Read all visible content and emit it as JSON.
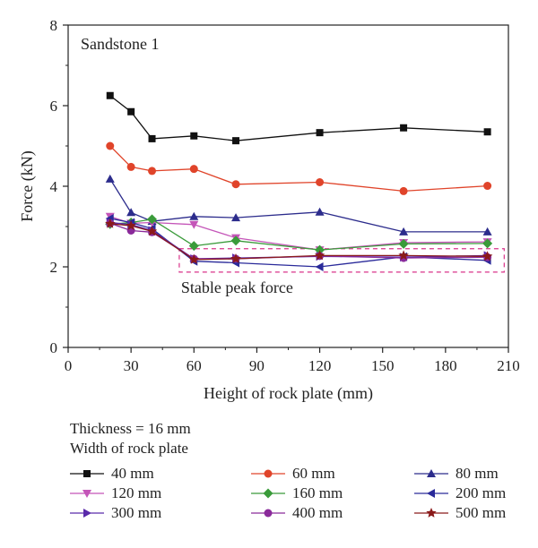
{
  "chart_data": {
    "type": "line",
    "annotation": "Sandstone 1",
    "box_label": "Stable peak force",
    "xlabel": "Height of rock plate (mm)",
    "ylabel": "Force (kN)",
    "xlim": [
      0,
      210
    ],
    "ylim": [
      0,
      8
    ],
    "x_ticks": [
      "0",
      "30",
      "60",
      "90",
      "120",
      "150",
      "180",
      "210"
    ],
    "y_ticks": [
      "0",
      "2",
      "4",
      "6",
      "8"
    ],
    "x": [
      20,
      30,
      40,
      60,
      80,
      120,
      160,
      200
    ],
    "stable_box": {
      "x_range": [
        53,
        208
      ],
      "y_range": [
        1.87,
        2.45
      ]
    },
    "series": [
      {
        "name": "40 mm",
        "color": "#111111",
        "marker": "square",
        "values": [
          6.25,
          5.85,
          5.18,
          5.25,
          5.13,
          5.33,
          5.45,
          5.35
        ]
      },
      {
        "name": "60 mm",
        "color": "#e0442a",
        "marker": "circle",
        "values": [
          5.0,
          4.48,
          4.38,
          4.43,
          4.05,
          4.1,
          3.88,
          4.01
        ]
      },
      {
        "name": "80 mm",
        "color": "#2c2c8c",
        "marker": "triangle-up",
        "values": [
          4.18,
          3.35,
          3.13,
          3.25,
          3.22,
          3.36,
          2.87,
          2.87
        ]
      },
      {
        "name": "120 mm",
        "color": "#c455b8",
        "marker": "triangle-down",
        "values": [
          3.25,
          3.08,
          3.1,
          3.05,
          2.72,
          2.42,
          2.6,
          2.62
        ]
      },
      {
        "name": "160 mm",
        "color": "#3a9b3a",
        "marker": "diamond",
        "values": [
          3.06,
          3.1,
          3.18,
          2.52,
          2.65,
          2.42,
          2.57,
          2.58
        ]
      },
      {
        "name": "200 mm",
        "color": "#2a2a9a",
        "marker": "triangle-left",
        "values": [
          3.2,
          3.1,
          2.95,
          2.14,
          2.1,
          2.0,
          2.25,
          2.16
        ]
      },
      {
        "name": "300 mm",
        "color": "#5a2aaa",
        "marker": "triangle-right",
        "values": [
          3.1,
          3.05,
          2.9,
          2.2,
          2.22,
          2.26,
          2.24,
          2.28
        ]
      },
      {
        "name": "400 mm",
        "color": "#8a2a9a",
        "marker": "circle",
        "values": [
          3.08,
          2.9,
          2.86,
          2.2,
          2.2,
          2.27,
          2.22,
          2.24
        ]
      },
      {
        "name": "500 mm",
        "color": "#8a1a1a",
        "marker": "star",
        "values": [
          3.07,
          3.02,
          2.88,
          2.18,
          2.2,
          2.28,
          2.28,
          2.26
        ]
      }
    ]
  },
  "legend": {
    "thickness_label": "Thickness = 16 mm",
    "width_title": "Width of rock plate"
  },
  "colors": {
    "box_stroke": "#d9338a",
    "axis": "#222222"
  }
}
